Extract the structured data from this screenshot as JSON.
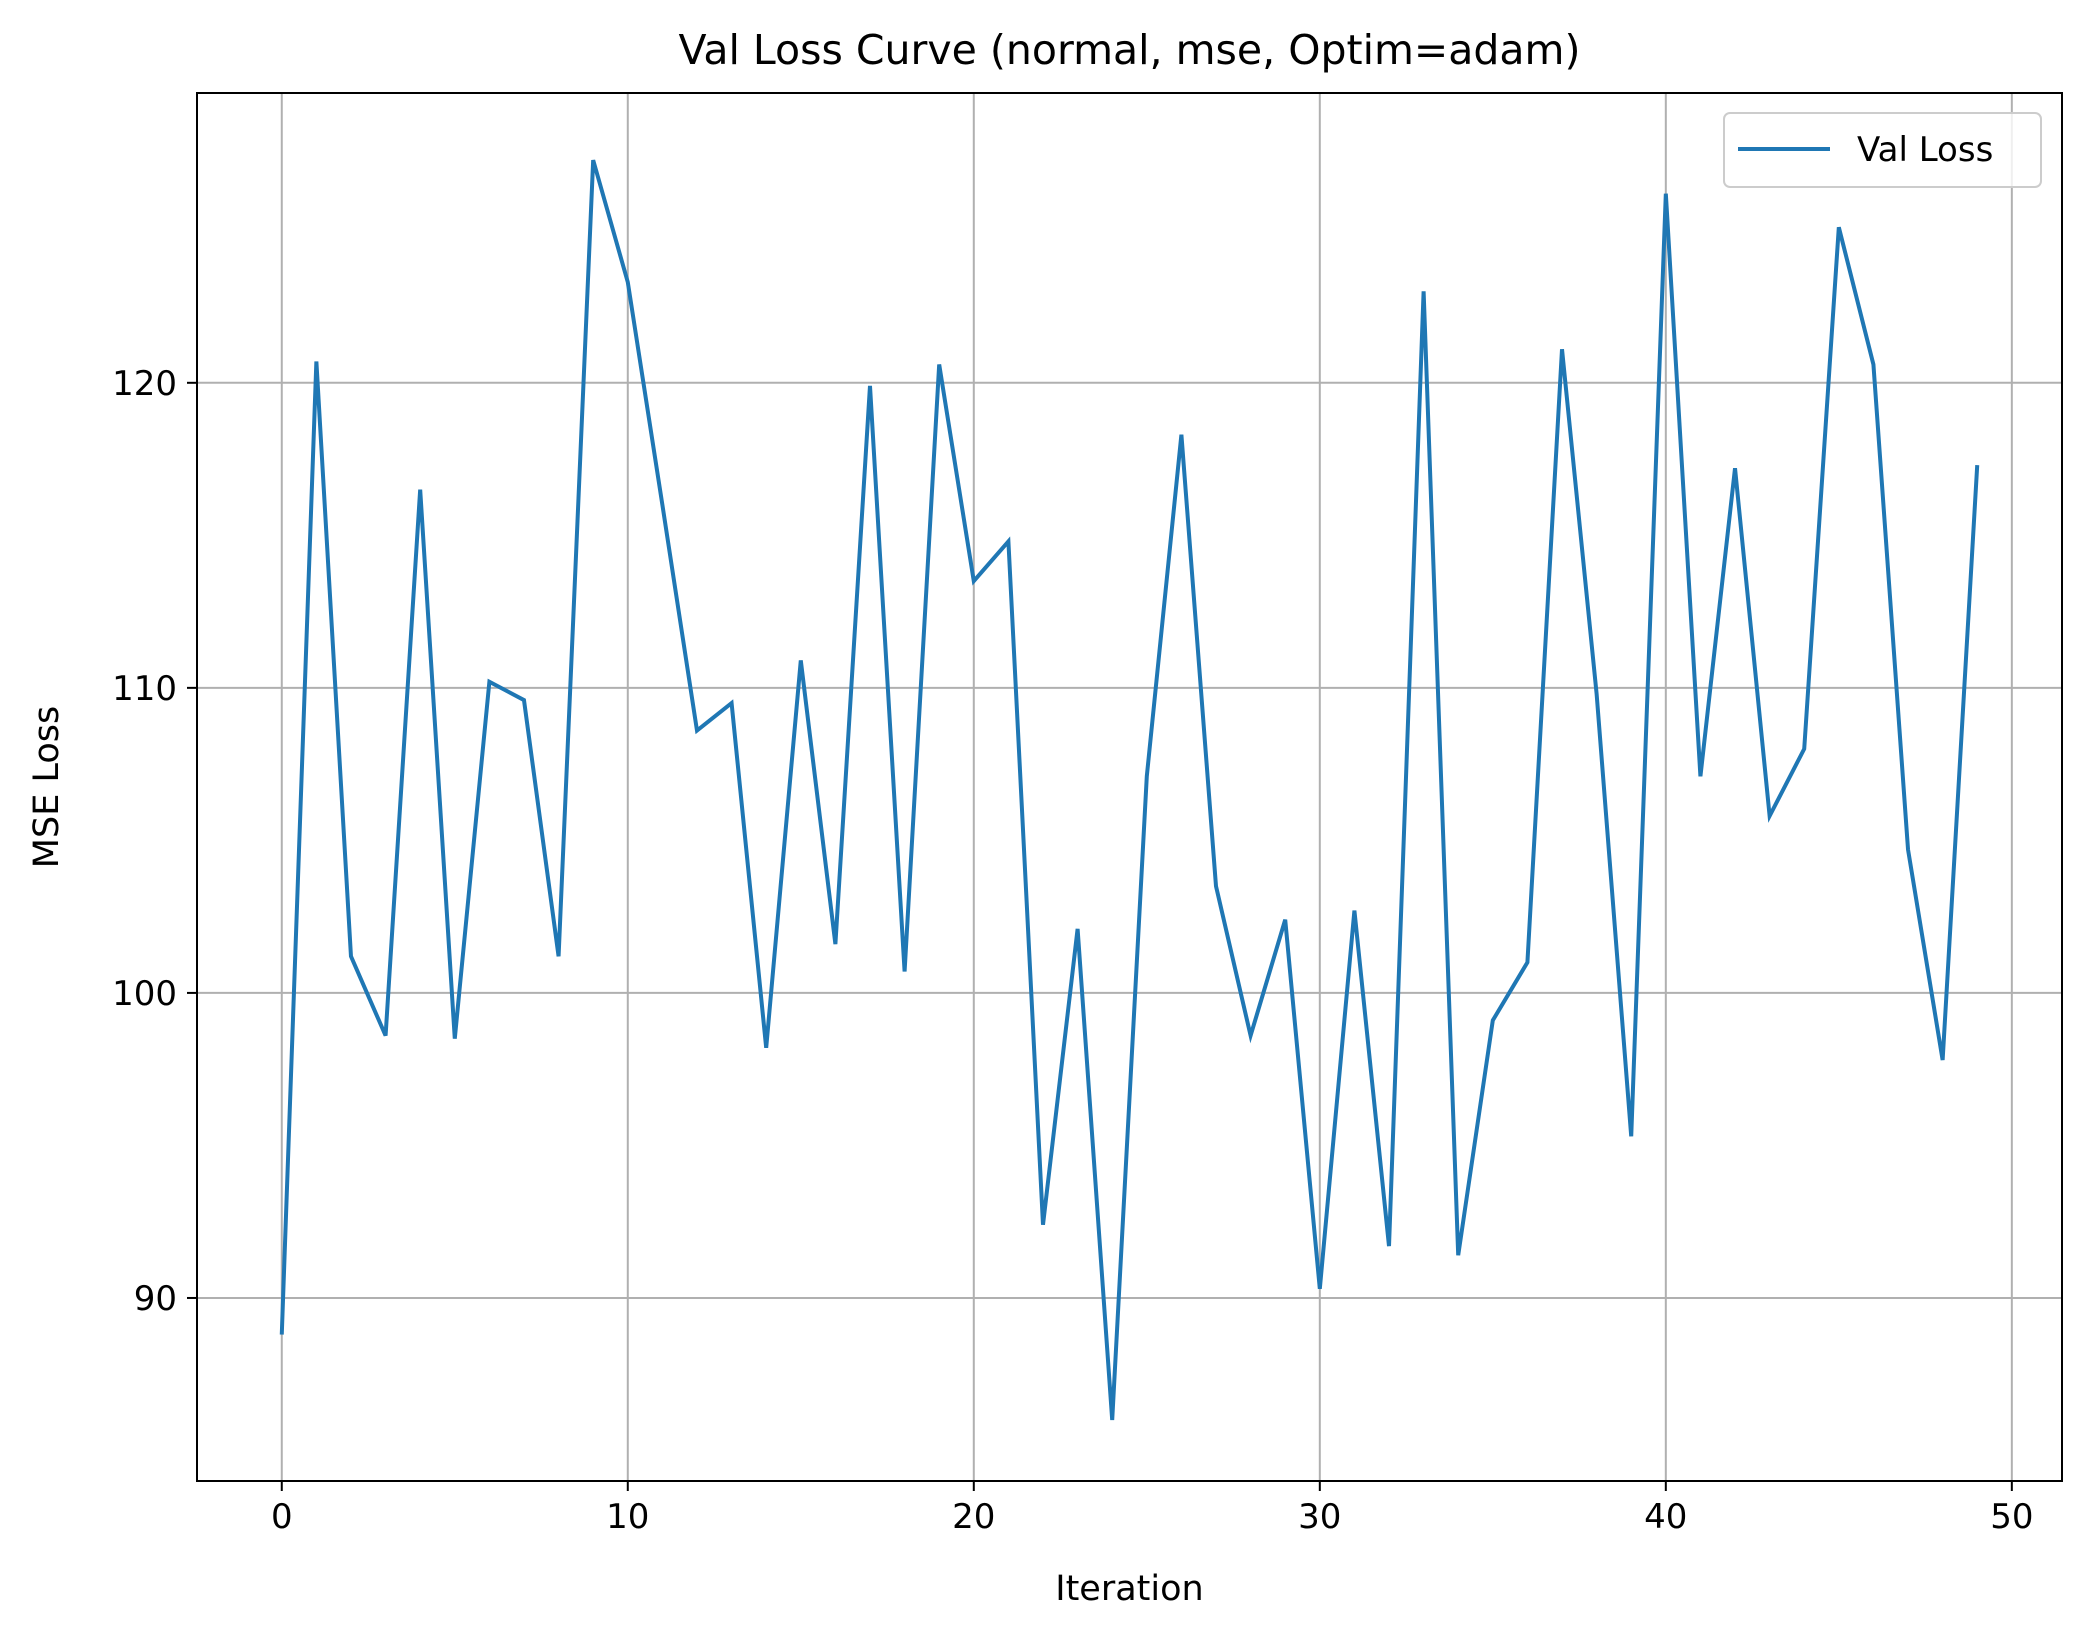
{
  "chart_data": {
    "type": "line",
    "title": "Val Loss Curve (normal, mse, Optim=adam)",
    "xlabel": "Iteration",
    "ylabel": "MSE Loss",
    "xlim": [
      -2.45,
      51.45
    ],
    "ylim": [
      84.0,
      129.5
    ],
    "xticks": [
      0,
      10,
      20,
      30,
      40,
      50
    ],
    "yticks": [
      90,
      100,
      110,
      120
    ],
    "grid": true,
    "legend_position": "upper right",
    "colors": {
      "series": "#1f77b4",
      "grid": "#b0b0b0",
      "axes": "#000000"
    },
    "series": [
      {
        "name": "Val Loss",
        "x": [
          0,
          1,
          2,
          3,
          4,
          5,
          6,
          7,
          8,
          9,
          10,
          11,
          12,
          13,
          14,
          15,
          16,
          17,
          18,
          19,
          20,
          21,
          22,
          23,
          24,
          25,
          26,
          27,
          28,
          29,
          30,
          31,
          32,
          33,
          34,
          35,
          36,
          37,
          38,
          39,
          40,
          41,
          42,
          43,
          44,
          45,
          46,
          47,
          48,
          49
        ],
        "y": [
          88.8,
          120.7,
          101.2,
          98.6,
          116.5,
          98.5,
          110.2,
          109.6,
          101.2,
          127.3,
          123.3,
          116.0,
          108.6,
          109.5,
          98.2,
          110.9,
          101.6,
          119.9,
          100.7,
          120.6,
          113.5,
          114.8,
          92.4,
          102.1,
          86.0,
          107.1,
          118.3,
          103.5,
          98.6,
          102.4,
          90.3,
          102.7,
          91.7,
          123.0,
          91.4,
          99.1,
          101.0,
          121.1,
          109.8,
          95.3,
          126.2,
          107.1,
          117.2,
          105.8,
          108.0,
          125.1,
          120.6,
          104.7,
          97.8,
          117.3
        ]
      }
    ]
  }
}
